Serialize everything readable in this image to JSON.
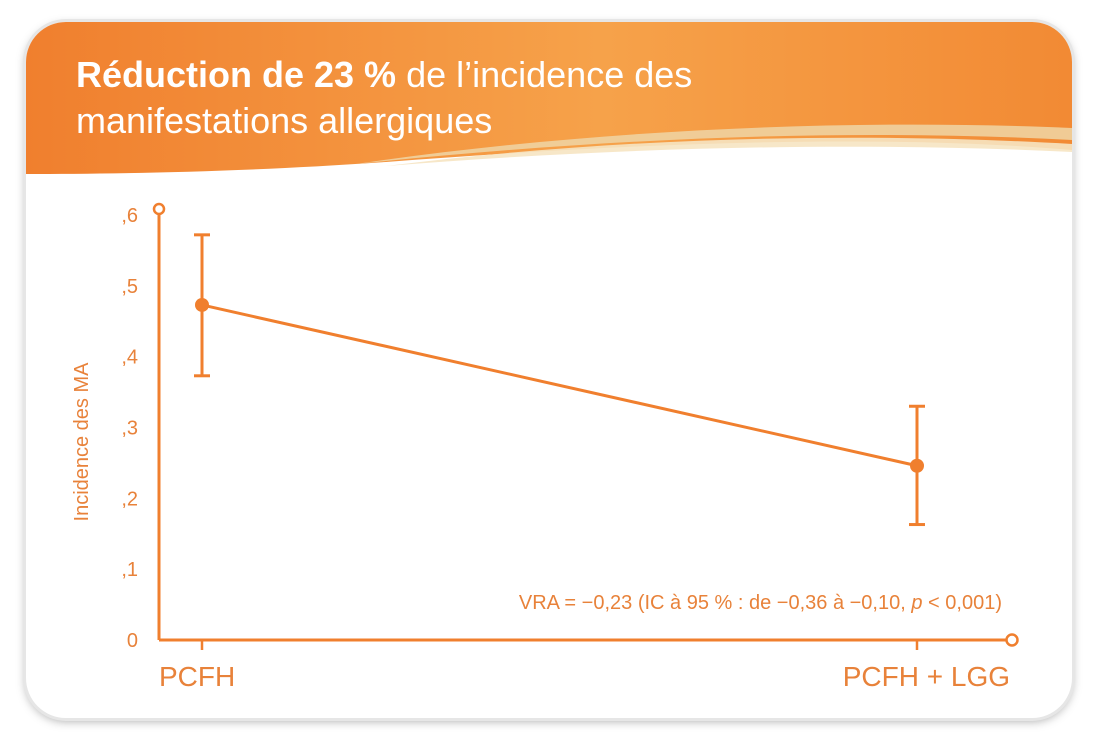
{
  "title": {
    "bold": "Réduction de 23 %",
    "rest": " de l’incidence des",
    "line2": "manifestations allergiques"
  },
  "colors": {
    "accent": "#f07f2e",
    "accent_light": "#f6a24c",
    "card_bg": "#ffffff"
  },
  "chart_data": {
    "type": "line",
    "title": "Réduction de 23 % de l’incidence des manifestations allergiques",
    "xlabel": "",
    "ylabel": "Incidence des MA",
    "categories": [
      "PCFH",
      "PCFH + LGG"
    ],
    "series": [
      {
        "values": [
          0.473,
          0.246
        ],
        "error_low": [
          0.373,
          0.163
        ],
        "error_high": [
          0.572,
          0.33
        ]
      }
    ],
    "ylim": [
      0,
      0.6
    ],
    "yticks": [
      0,
      0.1,
      0.2,
      0.3,
      0.4,
      0.5,
      0.6
    ],
    "ytick_labels": [
      "0",
      ",1",
      ",2",
      ",3",
      ",4",
      ",5",
      ",6"
    ],
    "annotation": {
      "prefix": "VRA = −0,23 (IC à 95 % : de −0,36 à −0,10, ",
      "p": "p",
      "suffix": " < 0,001)"
    },
    "grid": false
  }
}
